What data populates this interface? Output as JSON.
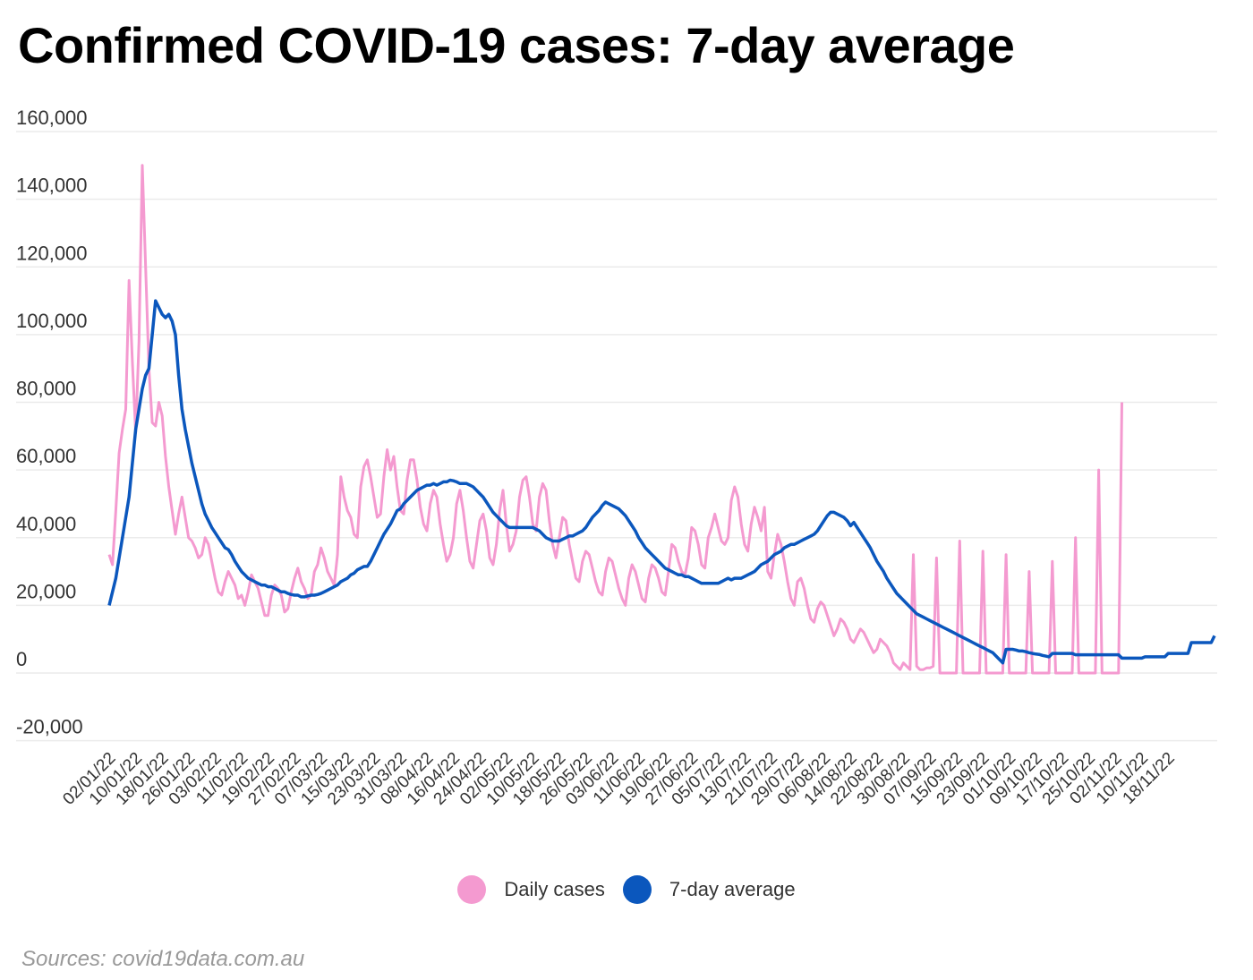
{
  "title": "Confirmed COVID-19 cases: 7-day average",
  "source": "Sources: covid19data.com.au",
  "colors": {
    "daily": "#f49ad0",
    "avg": "#0b57bd"
  },
  "legend": [
    {
      "label": "Daily cases",
      "color": "#f49ad0"
    },
    {
      "label": "7-day average",
      "color": "#0b57bd"
    }
  ],
  "chart_data": {
    "type": "line",
    "title": "Confirmed COVID-19 cases: 7-day average",
    "xlabel": "",
    "ylabel": "",
    "ylim": [
      -20000,
      160000
    ],
    "yticks": [
      -20000,
      0,
      20000,
      40000,
      60000,
      80000,
      100000,
      120000,
      140000,
      160000
    ],
    "ytick_labels": [
      "-20,000",
      "0",
      "20,000",
      "40,000",
      "60,000",
      "80,000",
      "100,000",
      "120,000",
      "140,000",
      "160,000"
    ],
    "xtick_labels": [
      "02/01/22",
      "10/01/22",
      "18/01/22",
      "26/01/22",
      "03/02/22",
      "11/02/22",
      "19/02/22",
      "27/02/22",
      "07/03/22",
      "15/03/22",
      "23/03/22",
      "31/03/22",
      "08/04/22",
      "16/04/22",
      "24/04/22",
      "02/05/22",
      "10/05/22",
      "18/05/22",
      "26/05/22",
      "03/06/22",
      "11/06/22",
      "19/06/22",
      "27/06/22",
      "05/07/22",
      "13/07/22",
      "21/07/22",
      "29/07/22",
      "06/08/22",
      "14/08/22",
      "22/08/22",
      "30/08/22",
      "07/09/22",
      "15/09/22",
      "23/09/22",
      "01/10/22",
      "09/10/22",
      "17/10/22",
      "25/10/22",
      "02/11/22",
      "10/11/22",
      "18/11/22"
    ],
    "x_start": "02/01/22",
    "x_step_days": 1,
    "grid": true,
    "legend_position": "bottom-center",
    "series": [
      {
        "name": "Daily cases",
        "values": [
          35000,
          32000,
          48000,
          65000,
          72000,
          78000,
          116000,
          92000,
          71000,
          98000,
          150000,
          120000,
          90000,
          74000,
          73000,
          80000,
          76000,
          64000,
          55000,
          48000,
          41000,
          47000,
          52000,
          46000,
          40000,
          39000,
          37000,
          34000,
          35000,
          40000,
          38000,
          33000,
          28000,
          24000,
          23000,
          27000,
          30000,
          28000,
          26000,
          22000,
          23000,
          20000,
          24000,
          29000,
          27000,
          25000,
          21000,
          17000,
          17000,
          23000,
          26000,
          25000,
          23000,
          18000,
          19000,
          24000,
          28000,
          31000,
          27000,
          25000,
          22000,
          23000,
          30000,
          32000,
          37000,
          34000,
          30000,
          28000,
          26000,
          35000,
          58000,
          52000,
          48000,
          46000,
          41000,
          40000,
          55000,
          61000,
          63000,
          58000,
          52000,
          46000,
          47000,
          58000,
          66000,
          60000,
          64000,
          55000,
          48000,
          47000,
          57000,
          63000,
          63000,
          57000,
          49000,
          44000,
          42000,
          50000,
          54000,
          52000,
          44000,
          38000,
          33000,
          35000,
          40000,
          50000,
          54000,
          48000,
          40000,
          33000,
          31000,
          38000,
          45000,
          47000,
          42000,
          34000,
          32000,
          38000,
          48000,
          54000,
          44000,
          36000,
          38000,
          42000,
          52000,
          57000,
          58000,
          52000,
          44000,
          42000,
          52000,
          56000,
          54000,
          45000,
          38000,
          34000,
          40000,
          46000,
          45000,
          38000,
          33000,
          28000,
          27000,
          33000,
          36000,
          35000,
          31000,
          27000,
          24000,
          23000,
          30000,
          34000,
          33000,
          29000,
          25000,
          22000,
          20000,
          28000,
          32000,
          30000,
          26000,
          22000,
          21000,
          28000,
          32000,
          31000,
          28000,
          24000,
          23000,
          30000,
          38000,
          37000,
          33000,
          30000,
          29000,
          34000,
          43000,
          42000,
          38000,
          32000,
          31000,
          40000,
          43000,
          47000,
          43000,
          39000,
          38000,
          40000,
          51000,
          55000,
          52000,
          44000,
          38000,
          36000,
          44000,
          49000,
          46000,
          42000,
          49000,
          30000,
          28000,
          35000,
          41000,
          38000,
          33000,
          27000,
          22000,
          20000,
          27000,
          28000,
          25000,
          20000,
          16000,
          15000,
          19000,
          21000,
          20000,
          17000,
          14000,
          11000,
          13000,
          16000,
          15000,
          13000,
          10000,
          9000,
          11000,
          13000,
          12000,
          10000,
          8000,
          6000,
          7000,
          10000,
          9000,
          8000,
          6000,
          3000,
          2000,
          1000,
          3000,
          2000,
          1000,
          35000,
          2000,
          1000,
          1000,
          1500,
          1500,
          2000,
          34000,
          0,
          0,
          0,
          0,
          0,
          0,
          39000,
          0,
          0,
          0,
          0,
          0,
          0,
          36000,
          0,
          0,
          0,
          0,
          0,
          0,
          35000,
          0,
          0,
          0,
          0,
          0,
          0,
          30000,
          0,
          0,
          0,
          0,
          0,
          0,
          33000,
          0,
          0,
          0,
          0,
          0,
          0,
          40000,
          0,
          0,
          0,
          0,
          0,
          0,
          60000,
          0,
          0,
          0,
          0,
          0,
          0,
          80000
        ],
        "color": "#f49ad0"
      },
      {
        "name": "7-day average",
        "values": [
          20000,
          24000,
          28000,
          34000,
          40000,
          46000,
          52000,
          62000,
          72000,
          78000,
          84000,
          88000,
          90000,
          100000,
          110000,
          108000,
          106000,
          105000,
          106000,
          104000,
          100000,
          88000,
          78000,
          72000,
          67000,
          62000,
          58000,
          54000,
          50000,
          47000,
          45000,
          43000,
          41500,
          40000,
          38500,
          37000,
          36500,
          35000,
          33000,
          31500,
          30000,
          29000,
          28000,
          27500,
          27000,
          26500,
          26000,
          26000,
          25500,
          25500,
          25000,
          24500,
          24000,
          24000,
          23500,
          23200,
          23000,
          23000,
          22500,
          22500,
          22800,
          23000,
          23000,
          23200,
          23500,
          24000,
          24500,
          25000,
          25500,
          26000,
          27000,
          27500,
          28000,
          29000,
          29500,
          30500,
          31000,
          31500,
          31500,
          33000,
          35000,
          37000,
          39000,
          41000,
          42500,
          44000,
          46000,
          48000,
          48500,
          50000,
          51000,
          52000,
          53000,
          54000,
          54500,
          55000,
          55500,
          55500,
          56000,
          55500,
          56000,
          56500,
          56500,
          57000,
          56800,
          56500,
          56000,
          56000,
          56000,
          55500,
          55000,
          54000,
          53000,
          52000,
          50500,
          49000,
          47500,
          46500,
          45500,
          44500,
          43500,
          43000,
          43000,
          43000,
          43000,
          43000,
          43000,
          43000,
          43000,
          42500,
          42000,
          41000,
          40000,
          39500,
          39000,
          39000,
          39000,
          39500,
          40000,
          40500,
          40500,
          41000,
          41500,
          42000,
          43000,
          44500,
          46000,
          47000,
          48000,
          49500,
          50500,
          50000,
          49500,
          49000,
          48500,
          47500,
          46500,
          45000,
          43500,
          42000,
          40000,
          38500,
          37000,
          36000,
          35000,
          34000,
          33000,
          32000,
          31000,
          30500,
          30000,
          29500,
          29000,
          29000,
          28500,
          28500,
          28000,
          27500,
          27000,
          26500,
          26500,
          26500,
          26500,
          26500,
          26500,
          27000,
          27500,
          28000,
          27500,
          28000,
          28000,
          28000,
          28500,
          29000,
          29500,
          30000,
          31000,
          32000,
          32500,
          33000,
          34000,
          35000,
          35500,
          36000,
          37000,
          37500,
          38000,
          38000,
          38500,
          39000,
          39500,
          40000,
          40500,
          41000,
          42000,
          43500,
          45000,
          46500,
          47500,
          47500,
          47000,
          46500,
          46000,
          45000,
          43500,
          44500,
          43000,
          41500,
          40000,
          38500,
          37000,
          35000,
          33000,
          31500,
          30000,
          28000,
          26500,
          25000,
          23500,
          22500,
          21500,
          20500,
          19500,
          18500,
          17500,
          17000,
          16500,
          16000,
          15500,
          15000,
          14500,
          14000,
          13500,
          13000,
          12500,
          12000,
          11500,
          11000,
          10500,
          10000,
          9500,
          9000,
          8500,
          8000,
          7500,
          7000,
          6500,
          6000,
          5000,
          4000,
          3000,
          7000,
          7000,
          7000,
          6800,
          6500,
          6500,
          6300,
          6000,
          5800,
          5600,
          5500,
          5200,
          5000,
          4800,
          5800,
          5800,
          5800,
          5800,
          5800,
          5800,
          5800,
          5400,
          5400,
          5400,
          5400,
          5400,
          5400,
          5400,
          5400,
          5400,
          5400,
          5400,
          5400,
          5400,
          5400,
          4400,
          4400,
          4400,
          4400,
          4400,
          4400,
          4400,
          4800,
          4800,
          4800,
          4800,
          4800,
          4800,
          4800,
          5800,
          5800,
          5800,
          5800,
          5800,
          5800,
          5800,
          9000,
          9000,
          9000,
          9000,
          9000,
          9000,
          9000,
          11000
        ],
        "color": "#0b57bd"
      }
    ]
  }
}
